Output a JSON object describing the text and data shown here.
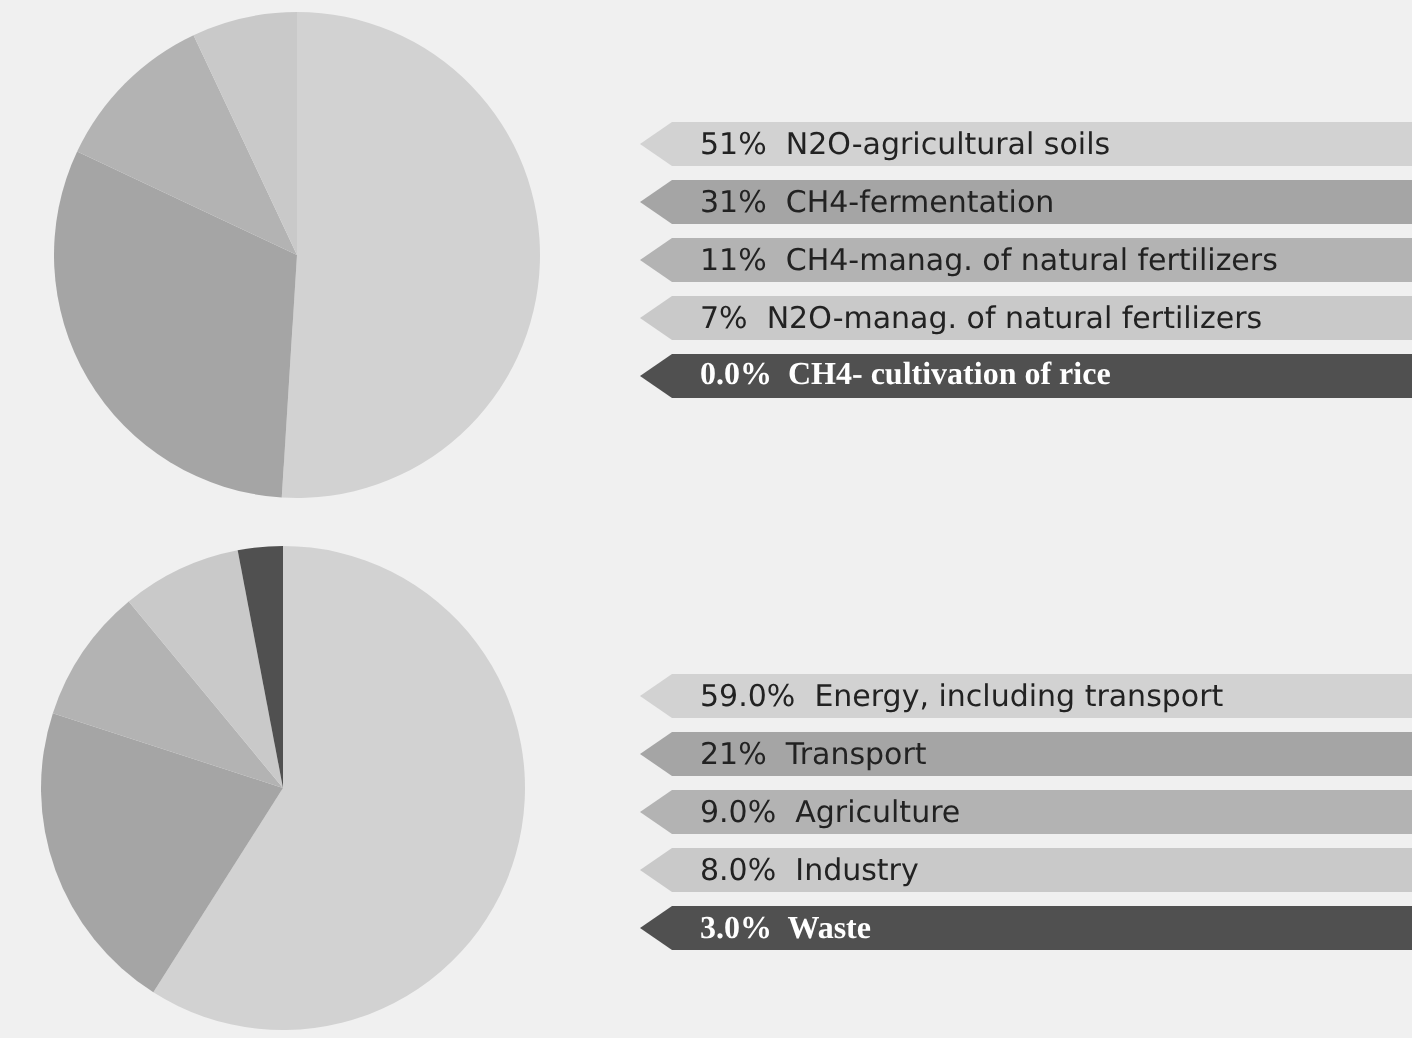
{
  "chart_data": [
    {
      "type": "pie",
      "categories": [
        "N2O-agricultural soils",
        "CH4-fermentation",
        "CH4-manag. of natural fertilizers",
        "N2O-manag. of natural fertilizers",
        "CH4- cultivation of rice"
      ],
      "values": [
        51,
        31,
        11,
        7,
        0.0
      ],
      "value_labels": [
        "51%",
        "31%",
        "11%",
        "7%",
        "0.0%"
      ],
      "colors": [
        "#d2d2d2",
        "#a5a5a5",
        "#b3b3b3",
        "#c9c9c9",
        "#505050"
      ],
      "legend": "right"
    },
    {
      "type": "pie",
      "categories": [
        "Energy, including transport",
        "Transport",
        "Agriculture",
        "Industry",
        "Waste"
      ],
      "values": [
        59.0,
        21,
        9.0,
        8.0,
        3.0
      ],
      "value_labels": [
        "59.0%",
        "21%",
        "9.0%",
        "8.0%",
        "3.0%"
      ],
      "colors": [
        "#d2d2d2",
        "#a5a5a5",
        "#b3b3b3",
        "#c9c9c9",
        "#505050"
      ],
      "legend": "right"
    }
  ]
}
